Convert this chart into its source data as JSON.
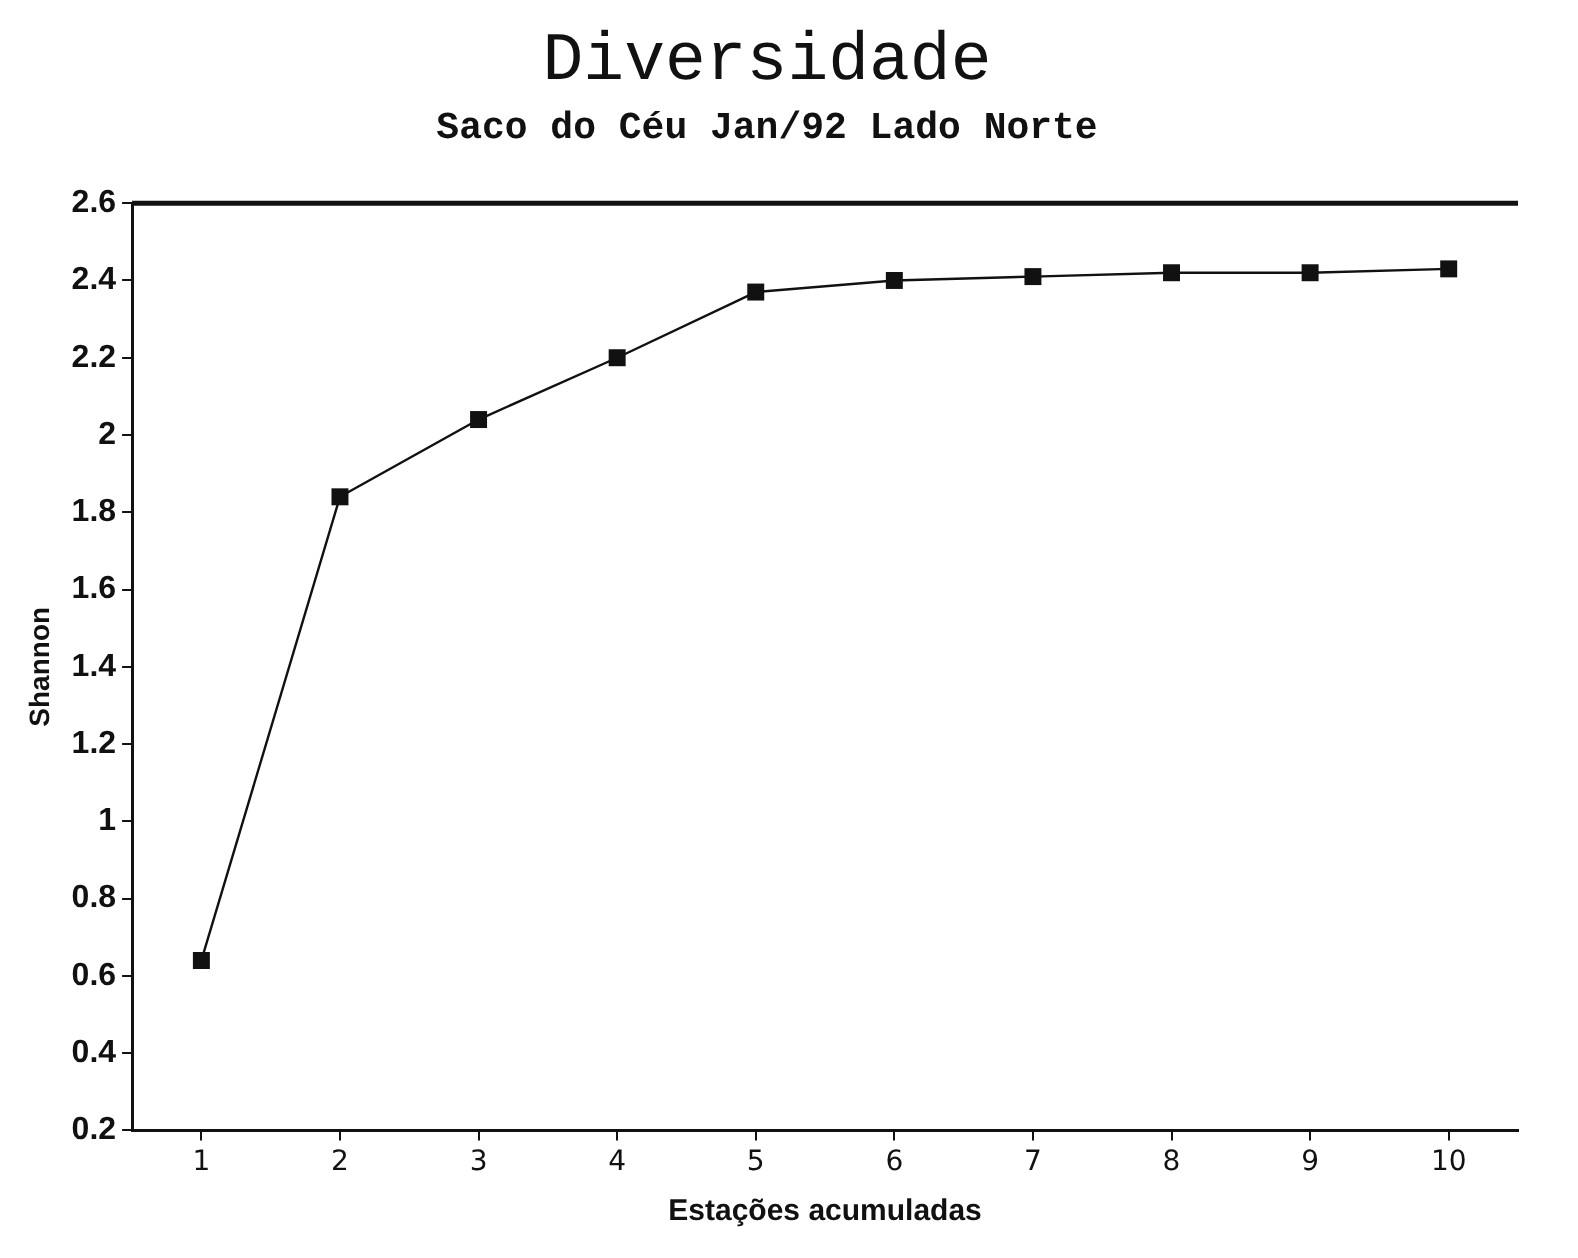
{
  "chart_data": {
    "type": "line",
    "title": "Diversidade",
    "subtitle": "Saco do Céu Jan/92 Lado Norte",
    "xlabel": "Estações acumuladas",
    "ylabel": "Shannon",
    "categories": [
      "1",
      "2",
      "3",
      "4",
      "5",
      "6",
      "7",
      "8",
      "9",
      "10"
    ],
    "series": [
      {
        "color": "#111111",
        "values": [
          0.64,
          1.84,
          2.04,
          2.2,
          2.37,
          2.4,
          2.41,
          2.42,
          2.42,
          2.43
        ]
      }
    ],
    "ylim": [
      0.2,
      2.6
    ],
    "yticks": [
      0.2,
      0.4,
      0.6,
      0.8,
      1,
      1.2,
      1.4,
      1.6,
      1.8,
      2,
      2.2,
      2.4,
      2.6
    ],
    "grid": false,
    "legend": false,
    "marker": "square",
    "line_style": "solid"
  }
}
